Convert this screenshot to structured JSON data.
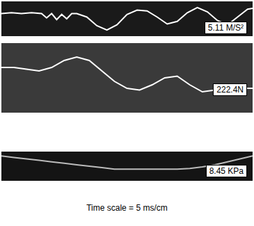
{
  "chart_data": [
    {
      "type": "line",
      "x": [
        0,
        4,
        8,
        12,
        16,
        18,
        20,
        22,
        24,
        26,
        28,
        30,
        34,
        38,
        42,
        46,
        50,
        54,
        58,
        62,
        66,
        70,
        74,
        78,
        82,
        86,
        90,
        94,
        98,
        100
      ],
      "values": [
        0.3,
        0.35,
        0.3,
        0.35,
        0.3,
        0.05,
        0.3,
        -0.05,
        0.25,
        0.0,
        0.3,
        0.3,
        0.1,
        -0.4,
        -0.65,
        -0.35,
        0.25,
        0.5,
        0.45,
        0.1,
        -0.3,
        -0.15,
        0.35,
        0.65,
        0.4,
        -0.1,
        -0.35,
        0.1,
        0.55,
        0.6
      ],
      "color": "#ffffff",
      "xlim": [
        0,
        100
      ],
      "ylim": [
        -1,
        1
      ],
      "tick_labels": false,
      "annotations": [
        "5.11 M/S²"
      ]
    },
    {
      "type": "line",
      "x": [
        0,
        5,
        10,
        15,
        20,
        25,
        30,
        35,
        40,
        45,
        50,
        55,
        60,
        65,
        70,
        75,
        80,
        85,
        90,
        95,
        100
      ],
      "values": [
        0.3,
        0.3,
        0.25,
        0.2,
        0.3,
        0.5,
        0.6,
        0.5,
        0.2,
        -0.1,
        -0.3,
        -0.35,
        -0.2,
        0.0,
        0.05,
        -0.2,
        -0.4,
        -0.35,
        -0.3,
        -0.3,
        -0.3
      ],
      "color": "#ffffff",
      "xlim": [
        0,
        100
      ],
      "ylim": [
        -1,
        1
      ],
      "tick_labels": false,
      "annotations": [
        "222.4N"
      ]
    },
    {
      "type": "line",
      "x": [
        0,
        5,
        10,
        15,
        20,
        25,
        30,
        35,
        40,
        45,
        50,
        55,
        60,
        65,
        70,
        75,
        80,
        85,
        90,
        95,
        100
      ],
      "values": [
        0.7,
        0.6,
        0.5,
        0.4,
        0.3,
        0.2,
        0.1,
        0.0,
        -0.1,
        -0.2,
        -0.2,
        -0.2,
        -0.2,
        -0.2,
        -0.2,
        -0.15,
        -0.05,
        0.1,
        0.3,
        0.5,
        0.7
      ],
      "color": "#bbbbbb",
      "xlim": [
        0,
        100
      ],
      "ylim": [
        -1,
        1
      ],
      "tick_labels": false,
      "annotations": [
        "8.45 KPa"
      ]
    }
  ],
  "caption": "Time scale = 5 ms/cm"
}
